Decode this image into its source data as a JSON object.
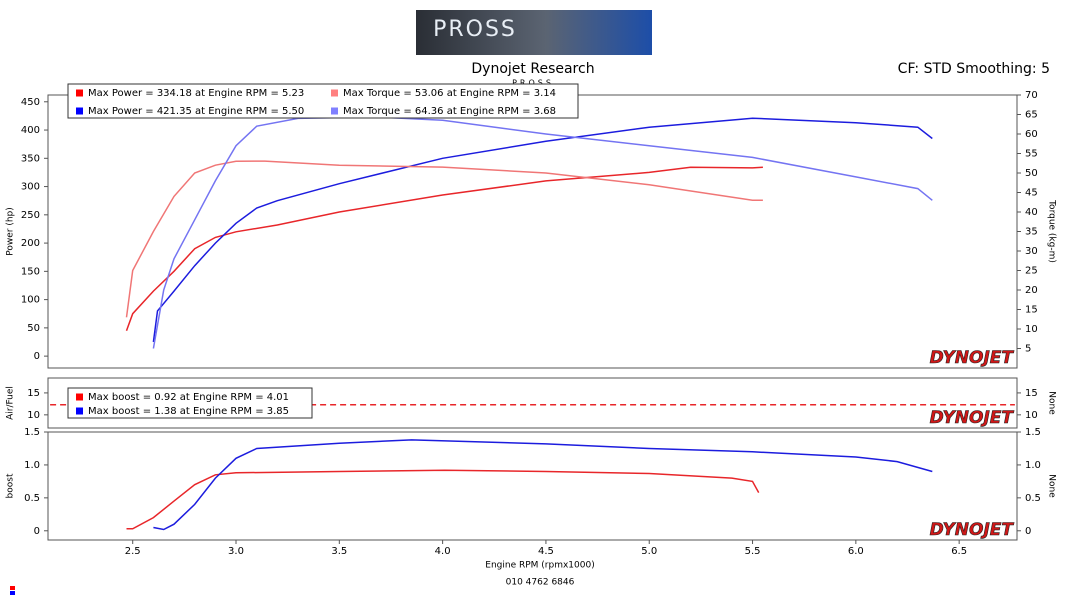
{
  "header": {
    "logo": "PROSS",
    "title": "Dynojet Research",
    "subtitle": "PROSS",
    "settings": "CF: STD Smoothing: 5"
  },
  "chart_data": [
    {
      "type": "line",
      "y_label": "Power (hp)",
      "y2_label": "Torque (kg-m)",
      "watermark": "DYNOJET",
      "xlim": [
        2.09,
        6.78
      ],
      "ylim": [
        -21,
        462
      ],
      "yticks": [
        0,
        50,
        100,
        150,
        200,
        250,
        300,
        350,
        400,
        450
      ],
      "y2lim": [
        0,
        70
      ],
      "y2ticks": [
        5,
        10,
        15,
        20,
        25,
        30,
        35,
        40,
        45,
        50,
        55,
        60,
        65,
        70
      ],
      "series": [
        {
          "name": "Max Power = 334.18 at Engine RPM = 5.23",
          "color": "#e8262a",
          "legend_color": "#ff0000",
          "x": [
            2.47,
            2.5,
            2.6,
            2.7,
            2.8,
            2.9,
            3.0,
            3.2,
            3.5,
            4.0,
            4.5,
            5.0,
            5.2,
            5.5,
            5.55
          ],
          "values": [
            45,
            75,
            115,
            150,
            190,
            210,
            220,
            232,
            255,
            285,
            310,
            325,
            334,
            333,
            334
          ]
        },
        {
          "name": "Max Power = 421.35 at Engine RPM = 5.50",
          "color": "#1c1cde",
          "legend_color": "#0000ff",
          "x": [
            2.6,
            2.62,
            2.7,
            2.8,
            2.9,
            3.0,
            3.1,
            3.2,
            3.5,
            4.0,
            4.5,
            5.0,
            5.5,
            6.0,
            6.3,
            6.37
          ],
          "values": [
            25,
            80,
            115,
            160,
            200,
            235,
            262,
            275,
            305,
            350,
            380,
            405,
            421,
            413,
            405,
            385
          ]
        },
        {
          "name": "Max Torque = 53.06 at Engine RPM = 3.14",
          "color": "#f07676",
          "legend_color": "#ff8080",
          "axis": "y2",
          "x": [
            2.47,
            2.5,
            2.6,
            2.7,
            2.8,
            2.9,
            3.0,
            3.14,
            3.5,
            4.0,
            4.5,
            5.0,
            5.5,
            5.55
          ],
          "values": [
            13,
            25,
            35,
            44,
            50,
            52,
            53,
            53.06,
            52,
            51.5,
            50,
            47,
            43,
            43
          ]
        },
        {
          "name": "Max Torque = 64.36 at Engine RPM = 3.68",
          "color": "#7474f2",
          "legend_color": "#8080ff",
          "axis": "y2",
          "x": [
            2.6,
            2.65,
            2.7,
            2.8,
            2.9,
            3.0,
            3.1,
            3.3,
            3.68,
            4.0,
            4.5,
            5.0,
            5.5,
            6.0,
            6.3,
            6.37
          ],
          "values": [
            5,
            20,
            28,
            38,
            48,
            57,
            62,
            64,
            64.36,
            63.5,
            60,
            57,
            54,
            49,
            46,
            43
          ]
        }
      ]
    },
    {
      "type": "line",
      "y_label": "Air/Fuel",
      "y2_label": "None",
      "watermark": "DYNOJET",
      "xlim": [
        2.09,
        6.78
      ],
      "ylim": [
        7,
        18.4
      ],
      "yticks": [
        10,
        15
      ],
      "y2lim": [
        7,
        18.4
      ],
      "y2ticks": [
        10,
        15
      ],
      "series": [
        {
          "color": "#e8262a",
          "line_style": "dashed",
          "x": [
            2.1,
            6.77
          ],
          "values": [
            12.3,
            12.3
          ]
        }
      ]
    },
    {
      "type": "line",
      "y_label": "boost",
      "y2_label": "None",
      "watermark": "DYNOJET",
      "x_label": "Engine RPM (rpmx1000)",
      "xlim": [
        2.09,
        6.78
      ],
      "xticks": [
        2.5,
        {
          "value": 3,
          "label": "3.0"
        },
        3.5,
        {
          "value": 4,
          "label": "4.0"
        },
        4.5,
        {
          "value": 5,
          "label": "5.0"
        },
        5.5,
        {
          "value": 6,
          "label": "6.0"
        },
        6.5
      ],
      "ylim": [
        -0.14,
        1.5
      ],
      "yticks": [
        0,
        0.5,
        {
          "value": 1,
          "label": "1.0"
        },
        1.5
      ],
      "y2lim": [
        -0.14,
        1.5
      ],
      "y2ticks": [
        0,
        0.5,
        {
          "value": 1,
          "label": "1.0"
        },
        1.5
      ],
      "series": [
        {
          "name": "Max boost = 0.92 at Engine RPM = 4.01",
          "color": "#e8262a",
          "legend_color": "#ff0000",
          "x": [
            2.47,
            2.5,
            2.6,
            2.7,
            2.8,
            2.9,
            3.0,
            3.5,
            4.01,
            4.5,
            5.0,
            5.4,
            5.5,
            5.53
          ],
          "values": [
            0.03,
            0.03,
            0.2,
            0.45,
            0.7,
            0.85,
            0.88,
            0.9,
            0.92,
            0.9,
            0.87,
            0.8,
            0.75,
            0.58
          ]
        },
        {
          "name": "Max boost = 1.38 at Engine RPM = 3.85",
          "color": "#1c1cde",
          "legend_color": "#0000ff",
          "x": [
            2.6,
            2.65,
            2.7,
            2.8,
            2.9,
            3.0,
            3.1,
            3.5,
            3.85,
            4.5,
            5.0,
            5.5,
            6.0,
            6.2,
            6.37
          ],
          "values": [
            0.05,
            0.02,
            0.1,
            0.4,
            0.8,
            1.1,
            1.25,
            1.33,
            1.38,
            1.32,
            1.25,
            1.2,
            1.12,
            1.05,
            0.9
          ]
        }
      ]
    }
  ],
  "footer": {
    "phone": "010 4762 6846"
  }
}
